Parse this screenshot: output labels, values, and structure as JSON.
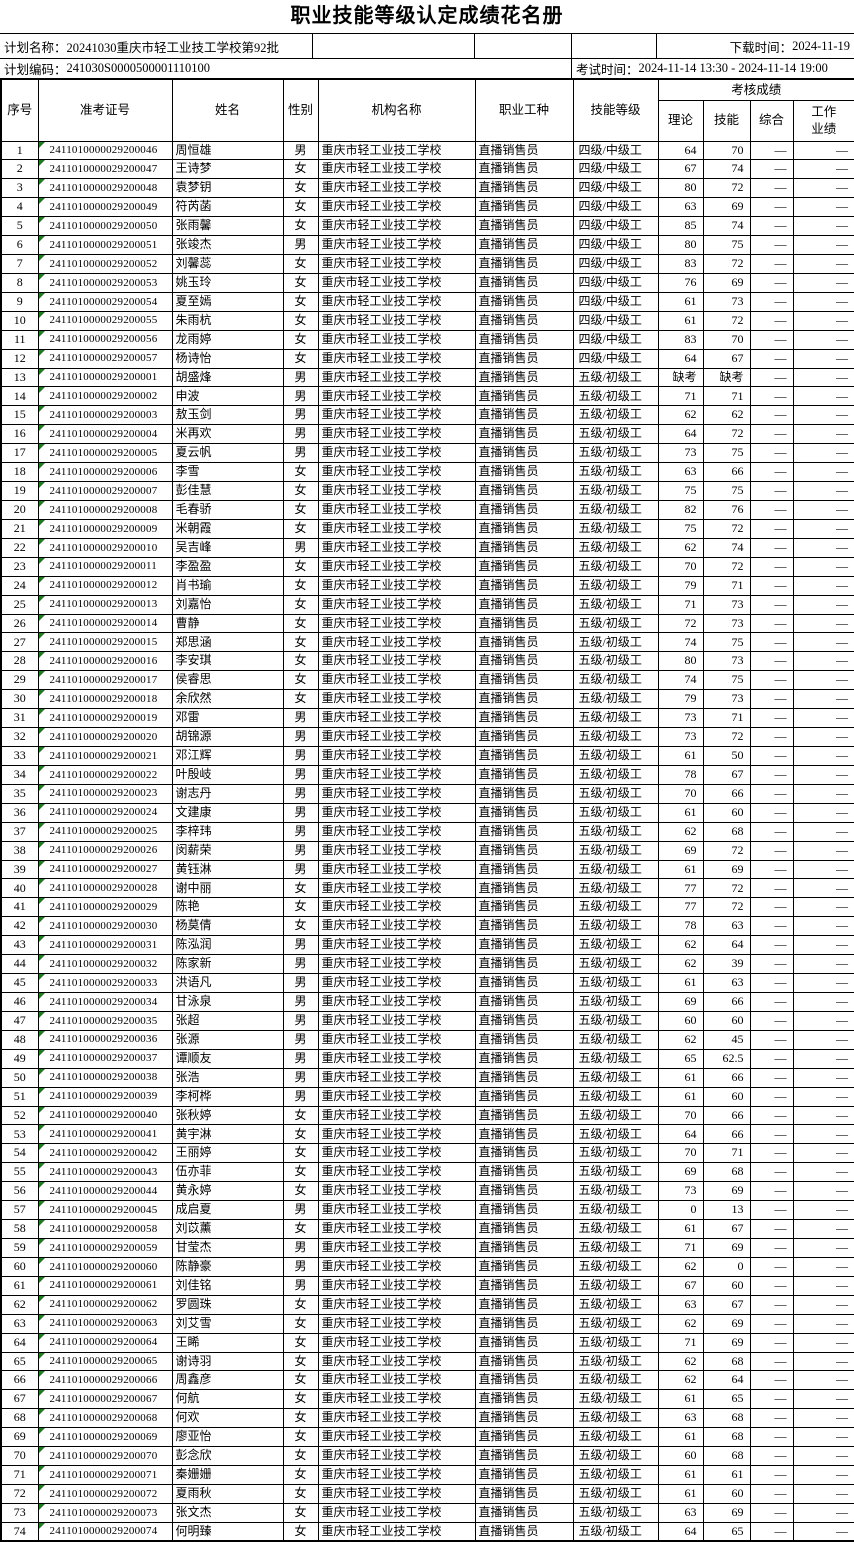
{
  "title": "职业技能等级认定成绩花名册",
  "colors": {
    "indicator_green": "#217a21",
    "border": "#000000",
    "background": "#ffffff"
  },
  "info": {
    "plan_name_label": "计划名称：",
    "plan_name": "20241030重庆市轻工业技工学校第92批",
    "download_time_label": "下载时间：",
    "download_time": "2024-11-19",
    "plan_code_label": "计划编码：",
    "plan_code": "241030S0000500001110100",
    "exam_time_label": "考试时间：",
    "exam_time": "2024-11-14 13:30 - 2024-11-14 19:00"
  },
  "table": {
    "headers": {
      "seq": "序号",
      "exam_id": "准考证号",
      "name": "姓名",
      "gender": "性别",
      "org": "机构名称",
      "occupation": "职业工种",
      "level": "技能等级",
      "scores_group": "考核成绩",
      "theory": "理论",
      "skill": "技能",
      "comprehensive": "综合",
      "work_performance": "工作业绩"
    },
    "rows": [
      [
        1,
        "2411010000029200046",
        "周恒雄",
        "男",
        "重庆市轻工业技工学校",
        "直播销售员",
        "四级/中级工",
        "64",
        "70",
        "—",
        "—"
      ],
      [
        2,
        "2411010000029200047",
        "王诗梦",
        "女",
        "重庆市轻工业技工学校",
        "直播销售员",
        "四级/中级工",
        "67",
        "74",
        "—",
        "—"
      ],
      [
        3,
        "2411010000029200048",
        "袁梦钥",
        "女",
        "重庆市轻工业技工学校",
        "直播销售员",
        "四级/中级工",
        "80",
        "72",
        "—",
        "—"
      ],
      [
        4,
        "2411010000029200049",
        "符芮菡",
        "女",
        "重庆市轻工业技工学校",
        "直播销售员",
        "四级/中级工",
        "63",
        "69",
        "—",
        "—"
      ],
      [
        5,
        "2411010000029200050",
        "张雨馨",
        "女",
        "重庆市轻工业技工学校",
        "直播销售员",
        "四级/中级工",
        "85",
        "74",
        "—",
        "—"
      ],
      [
        6,
        "2411010000029200051",
        "张竣杰",
        "男",
        "重庆市轻工业技工学校",
        "直播销售员",
        "四级/中级工",
        "80",
        "75",
        "—",
        "—"
      ],
      [
        7,
        "2411010000029200052",
        "刘馨蕊",
        "女",
        "重庆市轻工业技工学校",
        "直播销售员",
        "四级/中级工",
        "83",
        "72",
        "—",
        "—"
      ],
      [
        8,
        "2411010000029200053",
        "姚玉玲",
        "女",
        "重庆市轻工业技工学校",
        "直播销售员",
        "四级/中级工",
        "76",
        "69",
        "—",
        "—"
      ],
      [
        9,
        "2411010000029200054",
        "夏至嫣",
        "女",
        "重庆市轻工业技工学校",
        "直播销售员",
        "四级/中级工",
        "61",
        "73",
        "—",
        "—"
      ],
      [
        10,
        "2411010000029200055",
        "朱雨杭",
        "女",
        "重庆市轻工业技工学校",
        "直播销售员",
        "四级/中级工",
        "61",
        "72",
        "—",
        "—"
      ],
      [
        11,
        "2411010000029200056",
        "龙雨婷",
        "女",
        "重庆市轻工业技工学校",
        "直播销售员",
        "四级/中级工",
        "83",
        "70",
        "—",
        "—"
      ],
      [
        12,
        "2411010000029200057",
        "杨诗怡",
        "女",
        "重庆市轻工业技工学校",
        "直播销售员",
        "四级/中级工",
        "64",
        "67",
        "—",
        "—"
      ],
      [
        13,
        "2411010000029200001",
        "胡盛烽",
        "男",
        "重庆市轻工业技工学校",
        "直播销售员",
        "五级/初级工",
        "缺考",
        "缺考",
        "—",
        "—"
      ],
      [
        14,
        "2411010000029200002",
        "申波",
        "男",
        "重庆市轻工业技工学校",
        "直播销售员",
        "五级/初级工",
        "71",
        "71",
        "—",
        "—"
      ],
      [
        15,
        "2411010000029200003",
        "敖玉剑",
        "男",
        "重庆市轻工业技工学校",
        "直播销售员",
        "五级/初级工",
        "62",
        "62",
        "—",
        "—"
      ],
      [
        16,
        "2411010000029200004",
        "米再欢",
        "男",
        "重庆市轻工业技工学校",
        "直播销售员",
        "五级/初级工",
        "64",
        "72",
        "—",
        "—"
      ],
      [
        17,
        "2411010000029200005",
        "夏云帆",
        "男",
        "重庆市轻工业技工学校",
        "直播销售员",
        "五级/初级工",
        "73",
        "75",
        "—",
        "—"
      ],
      [
        18,
        "2411010000029200006",
        "李雪",
        "女",
        "重庆市轻工业技工学校",
        "直播销售员",
        "五级/初级工",
        "63",
        "66",
        "—",
        "—"
      ],
      [
        19,
        "2411010000029200007",
        "彭佳慧",
        "女",
        "重庆市轻工业技工学校",
        "直播销售员",
        "五级/初级工",
        "75",
        "75",
        "—",
        "—"
      ],
      [
        20,
        "2411010000029200008",
        "毛春骄",
        "女",
        "重庆市轻工业技工学校",
        "直播销售员",
        "五级/初级工",
        "82",
        "76",
        "—",
        "—"
      ],
      [
        21,
        "2411010000029200009",
        "米朝霞",
        "女",
        "重庆市轻工业技工学校",
        "直播销售员",
        "五级/初级工",
        "75",
        "72",
        "—",
        "—"
      ],
      [
        22,
        "2411010000029200010",
        "吴吉峰",
        "男",
        "重庆市轻工业技工学校",
        "直播销售员",
        "五级/初级工",
        "62",
        "74",
        "—",
        "—"
      ],
      [
        23,
        "2411010000029200011",
        "李盈盈",
        "女",
        "重庆市轻工业技工学校",
        "直播销售员",
        "五级/初级工",
        "70",
        "72",
        "—",
        "—"
      ],
      [
        24,
        "2411010000029200012",
        "肖书瑜",
        "女",
        "重庆市轻工业技工学校",
        "直播销售员",
        "五级/初级工",
        "79",
        "71",
        "—",
        "—"
      ],
      [
        25,
        "2411010000029200013",
        "刘嘉怡",
        "女",
        "重庆市轻工业技工学校",
        "直播销售员",
        "五级/初级工",
        "71",
        "73",
        "—",
        "—"
      ],
      [
        26,
        "2411010000029200014",
        "曹静",
        "女",
        "重庆市轻工业技工学校",
        "直播销售员",
        "五级/初级工",
        "72",
        "73",
        "—",
        "—"
      ],
      [
        27,
        "2411010000029200015",
        "郑思涵",
        "女",
        "重庆市轻工业技工学校",
        "直播销售员",
        "五级/初级工",
        "74",
        "75",
        "—",
        "—"
      ],
      [
        28,
        "2411010000029200016",
        "李安琪",
        "女",
        "重庆市轻工业技工学校",
        "直播销售员",
        "五级/初级工",
        "80",
        "73",
        "—",
        "—"
      ],
      [
        29,
        "2411010000029200017",
        "侯睿思",
        "女",
        "重庆市轻工业技工学校",
        "直播销售员",
        "五级/初级工",
        "74",
        "75",
        "—",
        "—"
      ],
      [
        30,
        "2411010000029200018",
        "余欣然",
        "女",
        "重庆市轻工业技工学校",
        "直播销售员",
        "五级/初级工",
        "79",
        "73",
        "—",
        "—"
      ],
      [
        31,
        "2411010000029200019",
        "邓雷",
        "男",
        "重庆市轻工业技工学校",
        "直播销售员",
        "五级/初级工",
        "73",
        "71",
        "—",
        "—"
      ],
      [
        32,
        "2411010000029200020",
        "胡锦源",
        "男",
        "重庆市轻工业技工学校",
        "直播销售员",
        "五级/初级工",
        "73",
        "72",
        "—",
        "—"
      ],
      [
        33,
        "2411010000029200021",
        "邓江辉",
        "男",
        "重庆市轻工业技工学校",
        "直播销售员",
        "五级/初级工",
        "61",
        "50",
        "—",
        "—"
      ],
      [
        34,
        "2411010000029200022",
        "叶殷岐",
        "男",
        "重庆市轻工业技工学校",
        "直播销售员",
        "五级/初级工",
        "78",
        "67",
        "—",
        "—"
      ],
      [
        35,
        "2411010000029200023",
        "谢志丹",
        "男",
        "重庆市轻工业技工学校",
        "直播销售员",
        "五级/初级工",
        "70",
        "66",
        "—",
        "—"
      ],
      [
        36,
        "2411010000029200024",
        "文建康",
        "男",
        "重庆市轻工业技工学校",
        "直播销售员",
        "五级/初级工",
        "61",
        "60",
        "—",
        "—"
      ],
      [
        37,
        "2411010000029200025",
        "李梓玮",
        "男",
        "重庆市轻工业技工学校",
        "直播销售员",
        "五级/初级工",
        "62",
        "68",
        "—",
        "—"
      ],
      [
        38,
        "2411010000029200026",
        "闵薪荣",
        "男",
        "重庆市轻工业技工学校",
        "直播销售员",
        "五级/初级工",
        "69",
        "72",
        "—",
        "—"
      ],
      [
        39,
        "2411010000029200027",
        "黄钰淋",
        "男",
        "重庆市轻工业技工学校",
        "直播销售员",
        "五级/初级工",
        "61",
        "69",
        "—",
        "—"
      ],
      [
        40,
        "2411010000029200028",
        "谢中丽",
        "女",
        "重庆市轻工业技工学校",
        "直播销售员",
        "五级/初级工",
        "77",
        "72",
        "—",
        "—"
      ],
      [
        41,
        "2411010000029200029",
        "陈艳",
        "女",
        "重庆市轻工业技工学校",
        "直播销售员",
        "五级/初级工",
        "77",
        "72",
        "—",
        "—"
      ],
      [
        42,
        "2411010000029200030",
        "杨莫倩",
        "女",
        "重庆市轻工业技工学校",
        "直播销售员",
        "五级/初级工",
        "78",
        "63",
        "—",
        "—"
      ],
      [
        43,
        "2411010000029200031",
        "陈泓润",
        "男",
        "重庆市轻工业技工学校",
        "直播销售员",
        "五级/初级工",
        "62",
        "64",
        "—",
        "—"
      ],
      [
        44,
        "2411010000029200032",
        "陈家新",
        "男",
        "重庆市轻工业技工学校",
        "直播销售员",
        "五级/初级工",
        "62",
        "39",
        "—",
        "—"
      ],
      [
        45,
        "2411010000029200033",
        "洪语凡",
        "男",
        "重庆市轻工业技工学校",
        "直播销售员",
        "五级/初级工",
        "61",
        "63",
        "—",
        "—"
      ],
      [
        46,
        "2411010000029200034",
        "甘泳泉",
        "男",
        "重庆市轻工业技工学校",
        "直播销售员",
        "五级/初级工",
        "69",
        "66",
        "—",
        "—"
      ],
      [
        47,
        "2411010000029200035",
        "张超",
        "男",
        "重庆市轻工业技工学校",
        "直播销售员",
        "五级/初级工",
        "60",
        "60",
        "—",
        "—"
      ],
      [
        48,
        "2411010000029200036",
        "张源",
        "男",
        "重庆市轻工业技工学校",
        "直播销售员",
        "五级/初级工",
        "62",
        "45",
        "—",
        "—"
      ],
      [
        49,
        "2411010000029200037",
        "谭顺友",
        "男",
        "重庆市轻工业技工学校",
        "直播销售员",
        "五级/初级工",
        "65",
        "62.5",
        "—",
        "—"
      ],
      [
        50,
        "2411010000029200038",
        "张浩",
        "男",
        "重庆市轻工业技工学校",
        "直播销售员",
        "五级/初级工",
        "61",
        "66",
        "—",
        "—"
      ],
      [
        51,
        "2411010000029200039",
        "李柯桦",
        "男",
        "重庆市轻工业技工学校",
        "直播销售员",
        "五级/初级工",
        "61",
        "60",
        "—",
        "—"
      ],
      [
        52,
        "2411010000029200040",
        "张秋婷",
        "女",
        "重庆市轻工业技工学校",
        "直播销售员",
        "五级/初级工",
        "70",
        "66",
        "—",
        "—"
      ],
      [
        53,
        "2411010000029200041",
        "黄宇淋",
        "女",
        "重庆市轻工业技工学校",
        "直播销售员",
        "五级/初级工",
        "64",
        "66",
        "—",
        "—"
      ],
      [
        54,
        "2411010000029200042",
        "王丽婷",
        "女",
        "重庆市轻工业技工学校",
        "直播销售员",
        "五级/初级工",
        "70",
        "71",
        "—",
        "—"
      ],
      [
        55,
        "2411010000029200043",
        "伍亦菲",
        "女",
        "重庆市轻工业技工学校",
        "直播销售员",
        "五级/初级工",
        "69",
        "68",
        "—",
        "—"
      ],
      [
        56,
        "2411010000029200044",
        "黄永婷",
        "女",
        "重庆市轻工业技工学校",
        "直播销售员",
        "五级/初级工",
        "73",
        "69",
        "—",
        "—"
      ],
      [
        57,
        "2411010000029200045",
        "成启夏",
        "男",
        "重庆市轻工业技工学校",
        "直播销售员",
        "五级/初级工",
        "0",
        "13",
        "—",
        "—"
      ],
      [
        58,
        "2411010000029200058",
        "刘苡薰",
        "女",
        "重庆市轻工业技工学校",
        "直播销售员",
        "五级/初级工",
        "61",
        "67",
        "—",
        "—"
      ],
      [
        59,
        "2411010000029200059",
        "甘莹杰",
        "男",
        "重庆市轻工业技工学校",
        "直播销售员",
        "五级/初级工",
        "71",
        "69",
        "—",
        "—"
      ],
      [
        60,
        "2411010000029200060",
        "陈静豪",
        "男",
        "重庆市轻工业技工学校",
        "直播销售员",
        "五级/初级工",
        "62",
        "0",
        "—",
        "—"
      ],
      [
        61,
        "2411010000029200061",
        "刘佳铭",
        "男",
        "重庆市轻工业技工学校",
        "直播销售员",
        "五级/初级工",
        "67",
        "60",
        "—",
        "—"
      ],
      [
        62,
        "2411010000029200062",
        "罗圆珠",
        "女",
        "重庆市轻工业技工学校",
        "直播销售员",
        "五级/初级工",
        "63",
        "67",
        "—",
        "—"
      ],
      [
        63,
        "2411010000029200063",
        "刘艾雪",
        "女",
        "重庆市轻工业技工学校",
        "直播销售员",
        "五级/初级工",
        "62",
        "69",
        "—",
        "—"
      ],
      [
        64,
        "2411010000029200064",
        "王睎",
        "女",
        "重庆市轻工业技工学校",
        "直播销售员",
        "五级/初级工",
        "71",
        "69",
        "—",
        "—"
      ],
      [
        65,
        "2411010000029200065",
        "谢诗羽",
        "女",
        "重庆市轻工业技工学校",
        "直播销售员",
        "五级/初级工",
        "62",
        "68",
        "—",
        "—"
      ],
      [
        66,
        "2411010000029200066",
        "周鑫彦",
        "女",
        "重庆市轻工业技工学校",
        "直播销售员",
        "五级/初级工",
        "62",
        "64",
        "—",
        "—"
      ],
      [
        67,
        "2411010000029200067",
        "何航",
        "女",
        "重庆市轻工业技工学校",
        "直播销售员",
        "五级/初级工",
        "61",
        "65",
        "—",
        "—"
      ],
      [
        68,
        "2411010000029200068",
        "何欢",
        "女",
        "重庆市轻工业技工学校",
        "直播销售员",
        "五级/初级工",
        "63",
        "68",
        "—",
        "—"
      ],
      [
        69,
        "2411010000029200069",
        "廖亚怡",
        "女",
        "重庆市轻工业技工学校",
        "直播销售员",
        "五级/初级工",
        "61",
        "68",
        "—",
        "—"
      ],
      [
        70,
        "2411010000029200070",
        "彭念欣",
        "女",
        "重庆市轻工业技工学校",
        "直播销售员",
        "五级/初级工",
        "60",
        "68",
        "—",
        "—"
      ],
      [
        71,
        "2411010000029200071",
        "秦姗姗",
        "女",
        "重庆市轻工业技工学校",
        "直播销售员",
        "五级/初级工",
        "61",
        "61",
        "—",
        "—"
      ],
      [
        72,
        "2411010000029200072",
        "夏雨秋",
        "女",
        "重庆市轻工业技工学校",
        "直播销售员",
        "五级/初级工",
        "61",
        "60",
        "—",
        "—"
      ],
      [
        73,
        "2411010000029200073",
        "张文杰",
        "女",
        "重庆市轻工业技工学校",
        "直播销售员",
        "五级/初级工",
        "63",
        "69",
        "—",
        "—"
      ],
      [
        74,
        "2411010000029200074",
        "何明臻",
        "女",
        "重庆市轻工业技工学校",
        "直播销售员",
        "五级/初级工",
        "64",
        "65",
        "—",
        "—"
      ]
    ]
  }
}
